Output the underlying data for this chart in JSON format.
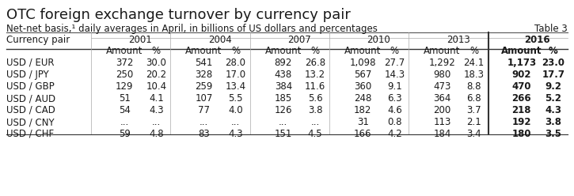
{
  "title": "OTC foreign exchange turnover by currency pair",
  "subtitle": "Net-net basis,¹ daily averages in April, in billions of US dollars and percentages",
  "table_label": "Table 3",
  "years": [
    "2001",
    "2004",
    "2007",
    "2010",
    "2013",
    "2016"
  ],
  "col_header_row1": [
    "Currency pair",
    "2001",
    "",
    "2004",
    "",
    "2007",
    "",
    "2010",
    "",
    "2013",
    "",
    "2016",
    ""
  ],
  "col_header_row2": [
    "",
    "Amount",
    "%",
    "Amount",
    "%",
    "Amount",
    "%",
    "Amount",
    "%",
    "Amount",
    "%",
    "Amount",
    "%"
  ],
  "rows": [
    [
      "USD / EUR",
      "372",
      "30.0",
      "541",
      "28.0",
      "892",
      "26.8",
      "1,098",
      "27.7",
      "1,292",
      "24.1",
      "1,173",
      "23.0"
    ],
    [
      "USD / JPY",
      "250",
      "20.2",
      "328",
      "17.0",
      "438",
      "13.2",
      "567",
      "14.3",
      "980",
      "18.3",
      "902",
      "17.7"
    ],
    [
      "USD / GBP",
      "129",
      "10.4",
      "259",
      "13.4",
      "384",
      "11.6",
      "360",
      "9.1",
      "473",
      "8.8",
      "470",
      "9.2"
    ],
    [
      "USD / AUD",
      "51",
      "4.1",
      "107",
      "5.5",
      "185",
      "5.6",
      "248",
      "6.3",
      "364",
      "6.8",
      "266",
      "5.2"
    ],
    [
      "USD / CAD",
      "54",
      "4.3",
      "77",
      "4.0",
      "126",
      "3.8",
      "182",
      "4.6",
      "200",
      "3.7",
      "218",
      "4.3"
    ],
    [
      "USD / CNY",
      "...",
      "...",
      "...",
      "...",
      "...",
      "...",
      "31",
      "0.8",
      "113",
      "2.1",
      "192",
      "3.8"
    ],
    [
      "USD / CHF",
      "59",
      "4.8",
      "83",
      "4.3",
      "151",
      "4.5",
      "166",
      "4.2",
      "184",
      "3.4",
      "180",
      "3.5"
    ]
  ],
  "bg_color": "#ffffff",
  "header_color": "#ffffff",
  "last_col_bold": true,
  "title_fontsize": 13,
  "subtitle_fontsize": 8.5,
  "table_fontsize": 8.5
}
